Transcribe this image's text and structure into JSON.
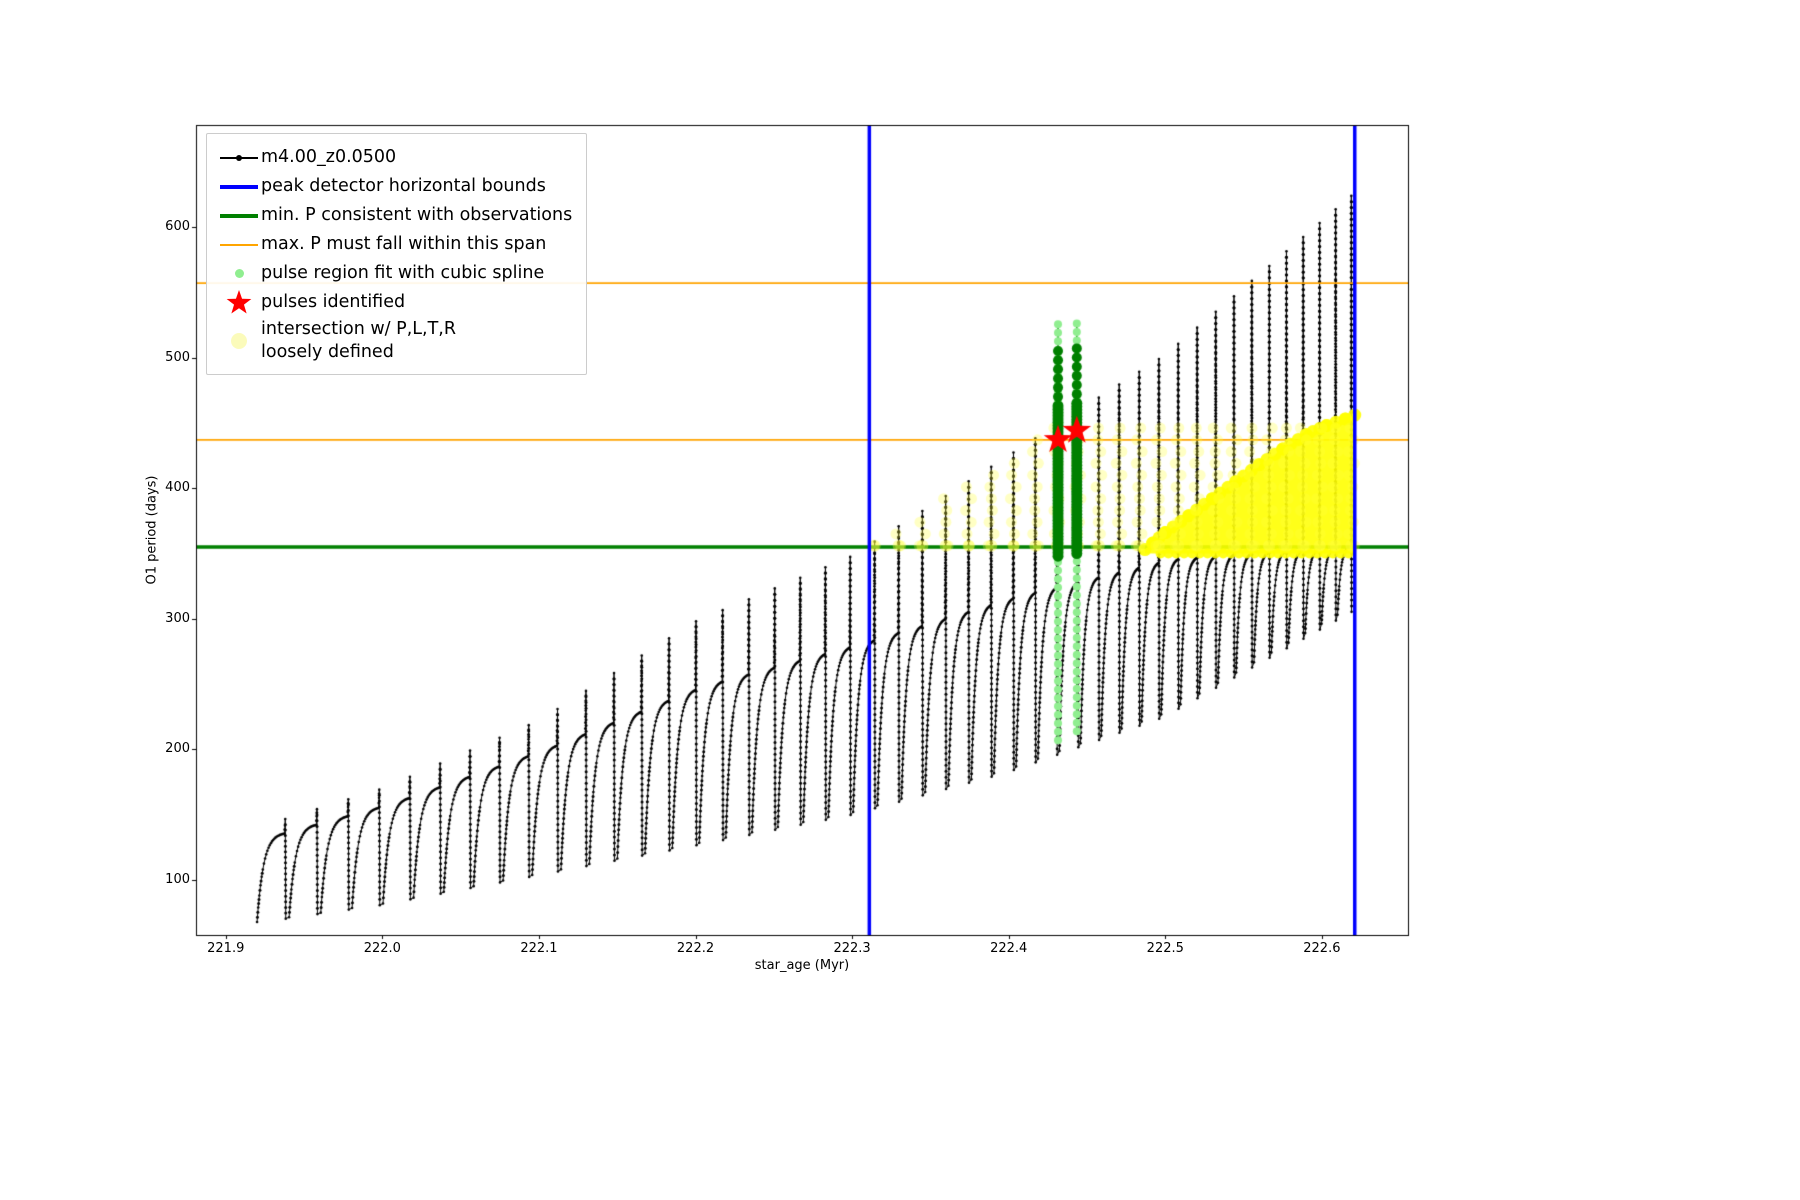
{
  "axes": {
    "xlabel": "star_age (Myr)",
    "ylabel": "O1 period (days)"
  },
  "legend": {
    "items": [
      {
        "label": "m4.00_z0.0500",
        "marker": "line-dot",
        "color": "#000000"
      },
      {
        "label": "peak detector horizontal bounds",
        "marker": "thick-line",
        "color": "#0000ff"
      },
      {
        "label": "min. P consistent with observations",
        "marker": "thick-line",
        "color": "#008000"
      },
      {
        "label": "max. P must fall within this span",
        "marker": "line",
        "color": "#ffa500"
      },
      {
        "label": "pulse region fit with cubic spline",
        "marker": "dot-small",
        "color": "#90ee90"
      },
      {
        "label": "pulses identified",
        "marker": "star",
        "color": "#ff0000"
      },
      {
        "label": "intersection w/ P,L,T,R\nloosely defined",
        "marker": "dot-large",
        "color": "#fbfbb4"
      }
    ]
  },
  "chart_data": {
    "type": "line",
    "title": "",
    "xlabel": "star_age (Myr)",
    "ylabel": "O1 period (days)",
    "xlim": [
      221.881,
      222.655
    ],
    "ylim": [
      58,
      678
    ],
    "xticks": [
      221.9,
      222.0,
      222.1,
      222.2,
      222.3,
      222.4,
      222.5,
      222.6
    ],
    "xtick_labels": [
      "221.9",
      "222.0",
      "222.1",
      "222.2",
      "222.3",
      "222.4",
      "222.5",
      "222.6"
    ],
    "yticks": [
      100,
      200,
      300,
      400,
      500,
      600
    ],
    "ytick_labels": [
      "100",
      "200",
      "300",
      "400",
      "500",
      "600"
    ],
    "grid": false,
    "legend_position": "upper-left",
    "series": [
      {
        "name": "m4.00_z0.0500",
        "type": "pulse_train",
        "color": "#000000",
        "age_start": 221.92,
        "age_end": 222.62,
        "n_pulses": 46,
        "period_start": 0.0205,
        "period_end": 0.01,
        "envelope_ages": [
          221.92,
          222.0,
          222.1,
          222.2,
          222.3,
          222.4,
          222.5,
          222.62
        ],
        "envelope_min": [
          68,
          82,
          105,
          128,
          152,
          185,
          228,
          310
        ],
        "envelope_shoulder": [
          132,
          158,
          200,
          248,
          280,
          316,
          345,
          356
        ],
        "envelope_top": [
          140,
          170,
          222,
          298,
          348,
          425,
          502,
          625
        ]
      },
      {
        "name": "peak detector horizontal bounds",
        "type": "vlines",
        "color": "#0000ff",
        "x": [
          222.311,
          222.621
        ],
        "linewidth": 3.5
      },
      {
        "name": "min. P consistent with observations",
        "type": "hlines",
        "color": "#008000",
        "y": [
          355
        ],
        "linewidth": 3.5
      },
      {
        "name": "max. P must fall within this span",
        "type": "hlines",
        "color": "#ffa500",
        "y": [
          437,
          557
        ],
        "linewidth": 1.8
      },
      {
        "name": "pulse region fit with cubic spline",
        "type": "spline_columns",
        "light_color": "#90ee90",
        "core_color": "#008000",
        "columns": [
          {
            "x": 222.4315,
            "light": [
              207,
              527
            ],
            "core": [
              348,
              463
            ],
            "core_sparse": [
              463,
              506
            ]
          },
          {
            "x": 222.4435,
            "light": [
              214,
              527
            ],
            "core": [
              350,
              465
            ],
            "core_sparse": [
              465,
              508
            ]
          }
        ]
      },
      {
        "name": "pulses identified",
        "type": "stars",
        "color": "#ff0000",
        "points": [
          [
            222.4315,
            437
          ],
          [
            222.4435,
            444
          ]
        ],
        "outer_radius_px": 15,
        "inner_radius_px": 6
      },
      {
        "name": "intersection w/ P,L,T,R loosely defined",
        "type": "yellow_intersection",
        "fill_color": "#ffff00",
        "dot_color": "rgba(255,255,60,0.30)",
        "band": {
          "x_min": 222.305,
          "x_max": 222.625,
          "y_min": 356,
          "y_cap": 448,
          "step": 9
        },
        "region_top_edge": [
          [
            222.487,
            353
          ],
          [
            222.492,
            358
          ],
          [
            222.5,
            366
          ],
          [
            222.515,
            379
          ],
          [
            222.53,
            392
          ],
          [
            222.545,
            405
          ],
          [
            222.56,
            418
          ],
          [
            222.575,
            430
          ],
          [
            222.59,
            441
          ],
          [
            222.603,
            448
          ],
          [
            222.615,
            453
          ],
          [
            222.621,
            456
          ]
        ],
        "region_bottom_y": 350
      }
    ]
  }
}
